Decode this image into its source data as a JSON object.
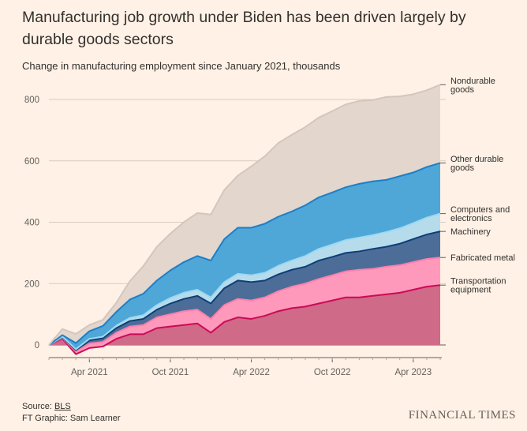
{
  "title": "Manufacturing job growth under Biden has been driven largely by durable goods sectors",
  "subtitle": "Change in manufacturing employment since January 2021, thousands",
  "source_prefix": "Source: ",
  "source_link": "BLS",
  "credit": "FT Graphic: Sam Learner",
  "logo": "FINANCIAL TIMES",
  "chart_data": {
    "type": "area",
    "stacked": true,
    "ylabel": "Change in manufacturing employment since January 2021, thousands",
    "ylim": [
      0,
      800
    ],
    "yticks": [
      0,
      200,
      400,
      600,
      800
    ],
    "xticks": [
      {
        "label": "Apr 2021",
        "month": 3
      },
      {
        "label": "Oct 2021",
        "month": 9
      },
      {
        "label": "Apr 2022",
        "month": 15
      },
      {
        "label": "Oct 2022",
        "month": 21
      },
      {
        "label": "Apr 2023",
        "month": 27
      }
    ],
    "x": [
      "Jan 2021",
      "Feb 2021",
      "Mar 2021",
      "Apr 2021",
      "May 2021",
      "Jun 2021",
      "Jul 2021",
      "Aug 2021",
      "Sep 2021",
      "Oct 2021",
      "Nov 2021",
      "Dec 2021",
      "Jan 2022",
      "Feb 2022",
      "Mar 2022",
      "Apr 2022",
      "May 2022",
      "Jun 2022",
      "Jul 2022",
      "Aug 2022",
      "Sep 2022",
      "Oct 2022",
      "Nov 2022",
      "Dec 2022",
      "Jan 2023",
      "Feb 2023",
      "Mar 2023",
      "Apr 2023",
      "May 2023",
      "Jun 2023"
    ],
    "grid": true,
    "legend": "right-inline",
    "series": [
      {
        "name": "Transportation equipment",
        "color": "#cc0a56",
        "fill": "#cf6a88",
        "values": [
          0,
          20,
          -30,
          -10,
          -5,
          20,
          35,
          35,
          55,
          60,
          65,
          70,
          40,
          75,
          90,
          85,
          95,
          110,
          120,
          125,
          135,
          145,
          155,
          155,
          160,
          165,
          170,
          180,
          190,
          195
        ]
      },
      {
        "name": "Fabricated metal",
        "color": "#ff7faa",
        "fill": "#ff99bb",
        "values": [
          0,
          3,
          8,
          15,
          15,
          20,
          25,
          30,
          35,
          40,
          45,
          45,
          45,
          55,
          60,
          60,
          60,
          65,
          70,
          75,
          80,
          82,
          85,
          90,
          88,
          90,
          90,
          90,
          90,
          90
        ]
      },
      {
        "name": "Machinery",
        "color": "#0f3f75",
        "fill": "#4d6d99",
        "values": [
          0,
          2,
          5,
          10,
          12,
          15,
          18,
          20,
          25,
          35,
          40,
          45,
          50,
          55,
          60,
          60,
          55,
          55,
          55,
          55,
          60,
          60,
          60,
          60,
          65,
          65,
          70,
          75,
          80,
          85
        ]
      },
      {
        "name": "Computers and electronics",
        "color": "#9ed8f0",
        "fill": "#b6dcec",
        "values": [
          0,
          2,
          3,
          5,
          5,
          8,
          10,
          12,
          15,
          18,
          20,
          20,
          20,
          20,
          22,
          22,
          25,
          28,
          30,
          35,
          38,
          40,
          42,
          45,
          45,
          48,
          50,
          52,
          55,
          58
        ]
      },
      {
        "name": "Other durable goods",
        "color": "#1f7ec6",
        "fill": "#4fa7d8",
        "values": [
          0,
          5,
          20,
          25,
          35,
          45,
          60,
          70,
          80,
          90,
          100,
          110,
          120,
          140,
          150,
          155,
          160,
          160,
          160,
          165,
          168,
          170,
          172,
          175,
          175,
          170,
          170,
          165,
          165,
          165
        ]
      },
      {
        "name": "Nondurable goods",
        "color": "#d4c6bd",
        "fill": "#e2d6cd",
        "values": [
          0,
          20,
          30,
          20,
          20,
          30,
          60,
          90,
          110,
          120,
          130,
          140,
          150,
          160,
          170,
          200,
          220,
          240,
          250,
          255,
          260,
          265,
          270,
          270,
          265,
          270,
          260,
          255,
          250,
          255
        ]
      }
    ]
  }
}
